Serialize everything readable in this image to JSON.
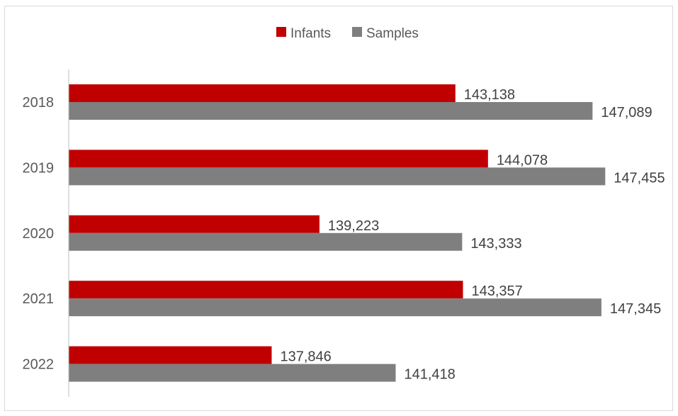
{
  "chart_data": {
    "type": "bar",
    "orientation": "horizontal",
    "categories": [
      "2018",
      "2019",
      "2020",
      "2021",
      "2022"
    ],
    "series": [
      {
        "name": "Infants",
        "color": "#c00000",
        "values": [
          143138,
          144078,
          139223,
          143357,
          137846
        ],
        "labels": [
          "143,138",
          "144,078",
          "139,223",
          "143,357",
          "137,846"
        ]
      },
      {
        "name": "Samples",
        "color": "#7f7f7f",
        "values": [
          147089,
          147455,
          143333,
          147345,
          141418
        ],
        "labels": [
          "147,089",
          "147,455",
          "143,333",
          "147,345",
          "141,418"
        ]
      }
    ],
    "xlim": [
      132000,
      149000
    ],
    "axis_line_color": "#bfbfbf",
    "legend_position": "top-center",
    "grid": false
  }
}
